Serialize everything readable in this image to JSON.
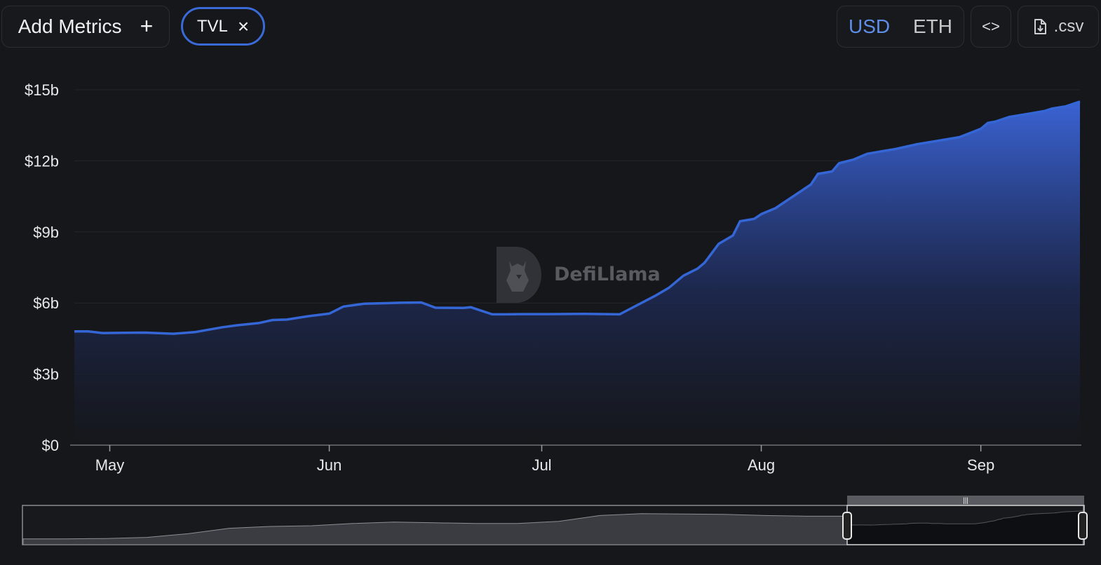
{
  "toolbar": {
    "add_metrics_label": "Add Metrics",
    "add_metrics_icon": "+",
    "tvl_chip_label": "TVL",
    "tvl_chip_close_icon": "×",
    "currency_options": [
      "USD",
      "ETH"
    ],
    "currency_selected": "USD",
    "embed_label": "<>",
    "csv_label": ".csv"
  },
  "watermark": {
    "text": "DefiLlama"
  },
  "colors": {
    "background": "#16171b",
    "line": "#3566d6",
    "accent": "#5f8ee8",
    "chip_border": "#3a6ad6"
  },
  "chart_data": {
    "type": "area",
    "title": "",
    "xlabel": "",
    "ylabel": "",
    "ylim": [
      0,
      15
    ],
    "yticks": [
      "$0",
      "$3b",
      "$6b",
      "$9b",
      "$12b",
      "$15b"
    ],
    "ytick_values": [
      0,
      3,
      6,
      9,
      12,
      15
    ],
    "xticks": [
      "May",
      "Jun",
      "Jul",
      "Aug",
      "Sep"
    ],
    "xtick_dates": [
      "2024-05-01",
      "2024-06-01",
      "2024-07-01",
      "2024-08-01",
      "2024-09-01"
    ],
    "x_range": [
      "2024-04-26",
      "2024-09-15"
    ],
    "grid": true,
    "series": [
      {
        "name": "TVL",
        "unit": "$b",
        "x": [
          "2024-04-26",
          "2024-04-28",
          "2024-04-30",
          "2024-05-03",
          "2024-05-06",
          "2024-05-10",
          "2024-05-13",
          "2024-05-17",
          "2024-05-19",
          "2024-05-22",
          "2024-05-24",
          "2024-05-26",
          "2024-05-29",
          "2024-06-01",
          "2024-06-03",
          "2024-06-06",
          "2024-06-09",
          "2024-06-11",
          "2024-06-14",
          "2024-06-16",
          "2024-06-20",
          "2024-06-21",
          "2024-06-24",
          "2024-06-26",
          "2024-06-28",
          "2024-07-02",
          "2024-07-07",
          "2024-07-12",
          "2024-07-17",
          "2024-07-19",
          "2024-07-21",
          "2024-07-23",
          "2024-07-24",
          "2024-07-26",
          "2024-07-28",
          "2024-07-29",
          "2024-07-31",
          "2024-08-01",
          "2024-08-03",
          "2024-08-04",
          "2024-08-06",
          "2024-08-08",
          "2024-08-09",
          "2024-08-11",
          "2024-08-12",
          "2024-08-14",
          "2024-08-16",
          "2024-08-18",
          "2024-08-20",
          "2024-08-23",
          "2024-08-26",
          "2024-08-29",
          "2024-09-01",
          "2024-09-02",
          "2024-09-03",
          "2024-09-05",
          "2024-09-08",
          "2024-09-10",
          "2024-09-11",
          "2024-09-13",
          "2024-09-14",
          "2024-09-15"
        ],
        "values": [
          4.8,
          4.8,
          4.73,
          4.74,
          4.75,
          4.7,
          4.77,
          4.98,
          5.06,
          5.15,
          5.28,
          5.3,
          5.44,
          5.55,
          5.85,
          5.97,
          5.99,
          6.01,
          6.02,
          5.8,
          5.79,
          5.82,
          5.52,
          5.52,
          5.53,
          5.53,
          5.54,
          5.52,
          6.3,
          6.65,
          7.15,
          7.45,
          7.7,
          8.5,
          8.85,
          9.45,
          9.55,
          9.75,
          10.0,
          10.2,
          10.6,
          11.0,
          11.45,
          11.55,
          11.9,
          12.05,
          12.3,
          12.4,
          12.5,
          12.7,
          12.85,
          13.0,
          13.35,
          13.6,
          13.65,
          13.85,
          14.0,
          14.1,
          14.2,
          14.3,
          14.4,
          14.5
        ]
      }
    ],
    "overview": {
      "selection_start": "2024-04-26",
      "selection_end": "2024-09-15"
    }
  }
}
